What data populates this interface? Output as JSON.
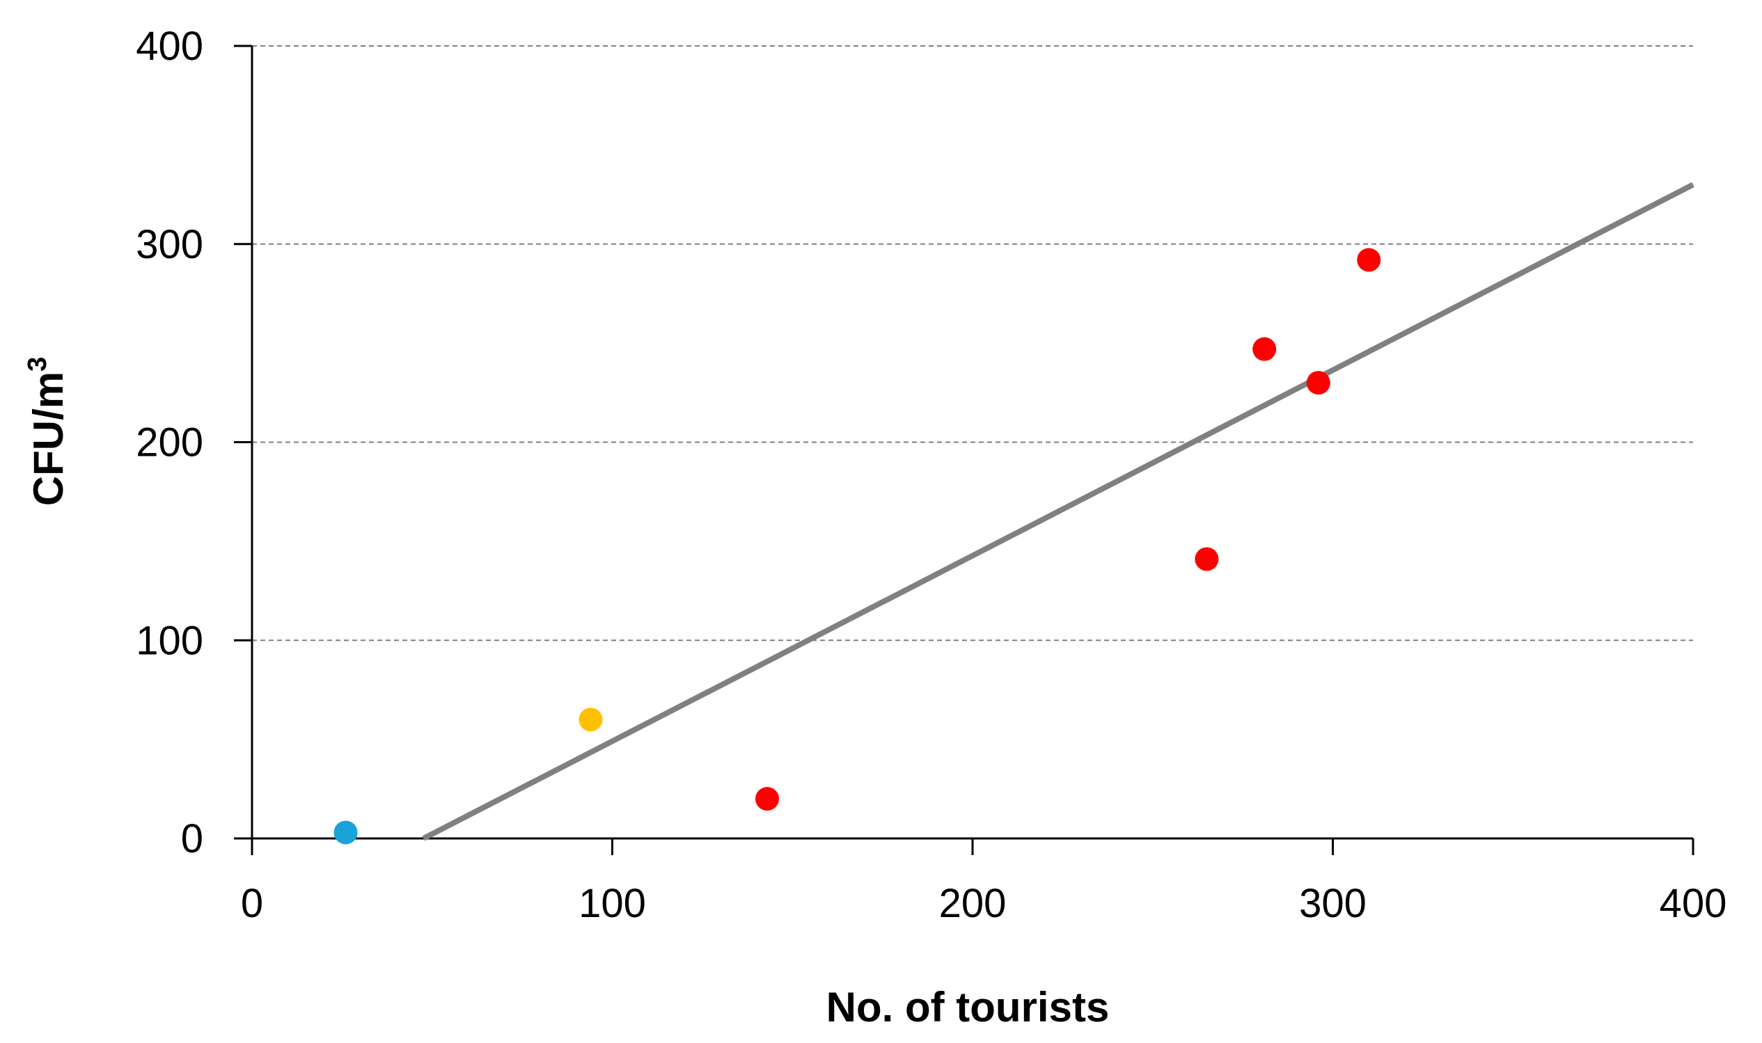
{
  "chart_data": {
    "type": "scatter",
    "xlabel": "No. of tourists",
    "ylabel": "CFU/m",
    "ylabel_superscript": "3",
    "xlim": [
      0,
      400
    ],
    "ylim": [
      0,
      400
    ],
    "x_ticks": [
      "0",
      "100",
      "200",
      "300",
      "400"
    ],
    "y_ticks": [
      "0",
      "100",
      "200",
      "300",
      "400"
    ],
    "grid": "horizontal-dashed",
    "points": [
      {
        "x": 26,
        "y": 3,
        "color": "#1aa3d9"
      },
      {
        "x": 94,
        "y": 60,
        "color": "#ffc000"
      },
      {
        "x": 143,
        "y": 20,
        "color": "#ff0000"
      },
      {
        "x": 265,
        "y": 141,
        "color": "#ff0000"
      },
      {
        "x": 281,
        "y": 247,
        "color": "#ff0000"
      },
      {
        "x": 296,
        "y": 230,
        "color": "#ff0000"
      },
      {
        "x": 310,
        "y": 292,
        "color": "#ff0000"
      }
    ],
    "trendline": {
      "x": [
        47.6,
        400
      ],
      "y": [
        0,
        330
      ],
      "color": "#808080"
    }
  }
}
